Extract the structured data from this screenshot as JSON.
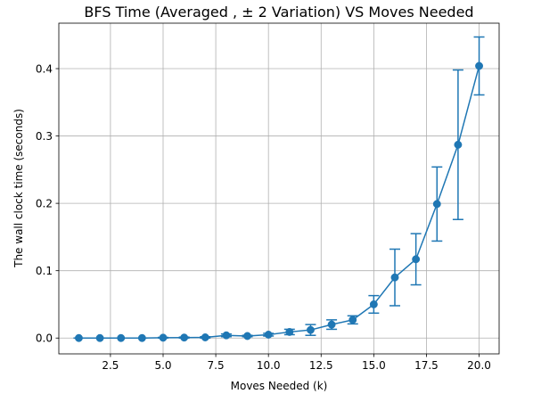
{
  "chart_data": {
    "type": "line",
    "title": "BFS Time (Averaged , ± 2 Variation) VS Moves Needed",
    "xlabel": "Moves Needed (k)",
    "ylabel": "The wall clock time (seconds)",
    "xlim": [
      0.05,
      20.95
    ],
    "ylim": [
      -0.0235,
      0.4675
    ],
    "x_ticks": [
      2.5,
      5.0,
      7.5,
      10.0,
      12.5,
      15.0,
      17.5,
      20.0
    ],
    "x_tick_labels": [
      "2.5",
      "5.0",
      "7.5",
      "10.0",
      "12.5",
      "15.0",
      "17.5",
      "20.0"
    ],
    "y_ticks": [
      0.0,
      0.1,
      0.2,
      0.3,
      0.4
    ],
    "y_tick_labels": [
      "0.0",
      "0.1",
      "0.2",
      "0.3",
      "0.4"
    ],
    "grid": true,
    "color": "#1f77b4",
    "series": [
      {
        "x": [
          1,
          2,
          3,
          4,
          5,
          6,
          7,
          8,
          9,
          10,
          11,
          12,
          13,
          14,
          15,
          16,
          17,
          18,
          19,
          20
        ],
        "values": [
          0.0,
          0.0,
          0.0,
          0.0,
          0.0005,
          0.0007,
          0.001,
          0.004,
          0.003,
          0.005,
          0.009,
          0.012,
          0.02,
          0.027,
          0.05,
          0.09,
          0.117,
          0.199,
          0.287,
          0.404
        ],
        "error": [
          0.0,
          0.0,
          0.0,
          0.0,
          0.0005,
          0.0007,
          0.001,
          0.002,
          0.001,
          0.002,
          0.004,
          0.008,
          0.007,
          0.006,
          0.013,
          0.042,
          0.038,
          0.055,
          0.111,
          0.043
        ]
      }
    ]
  }
}
